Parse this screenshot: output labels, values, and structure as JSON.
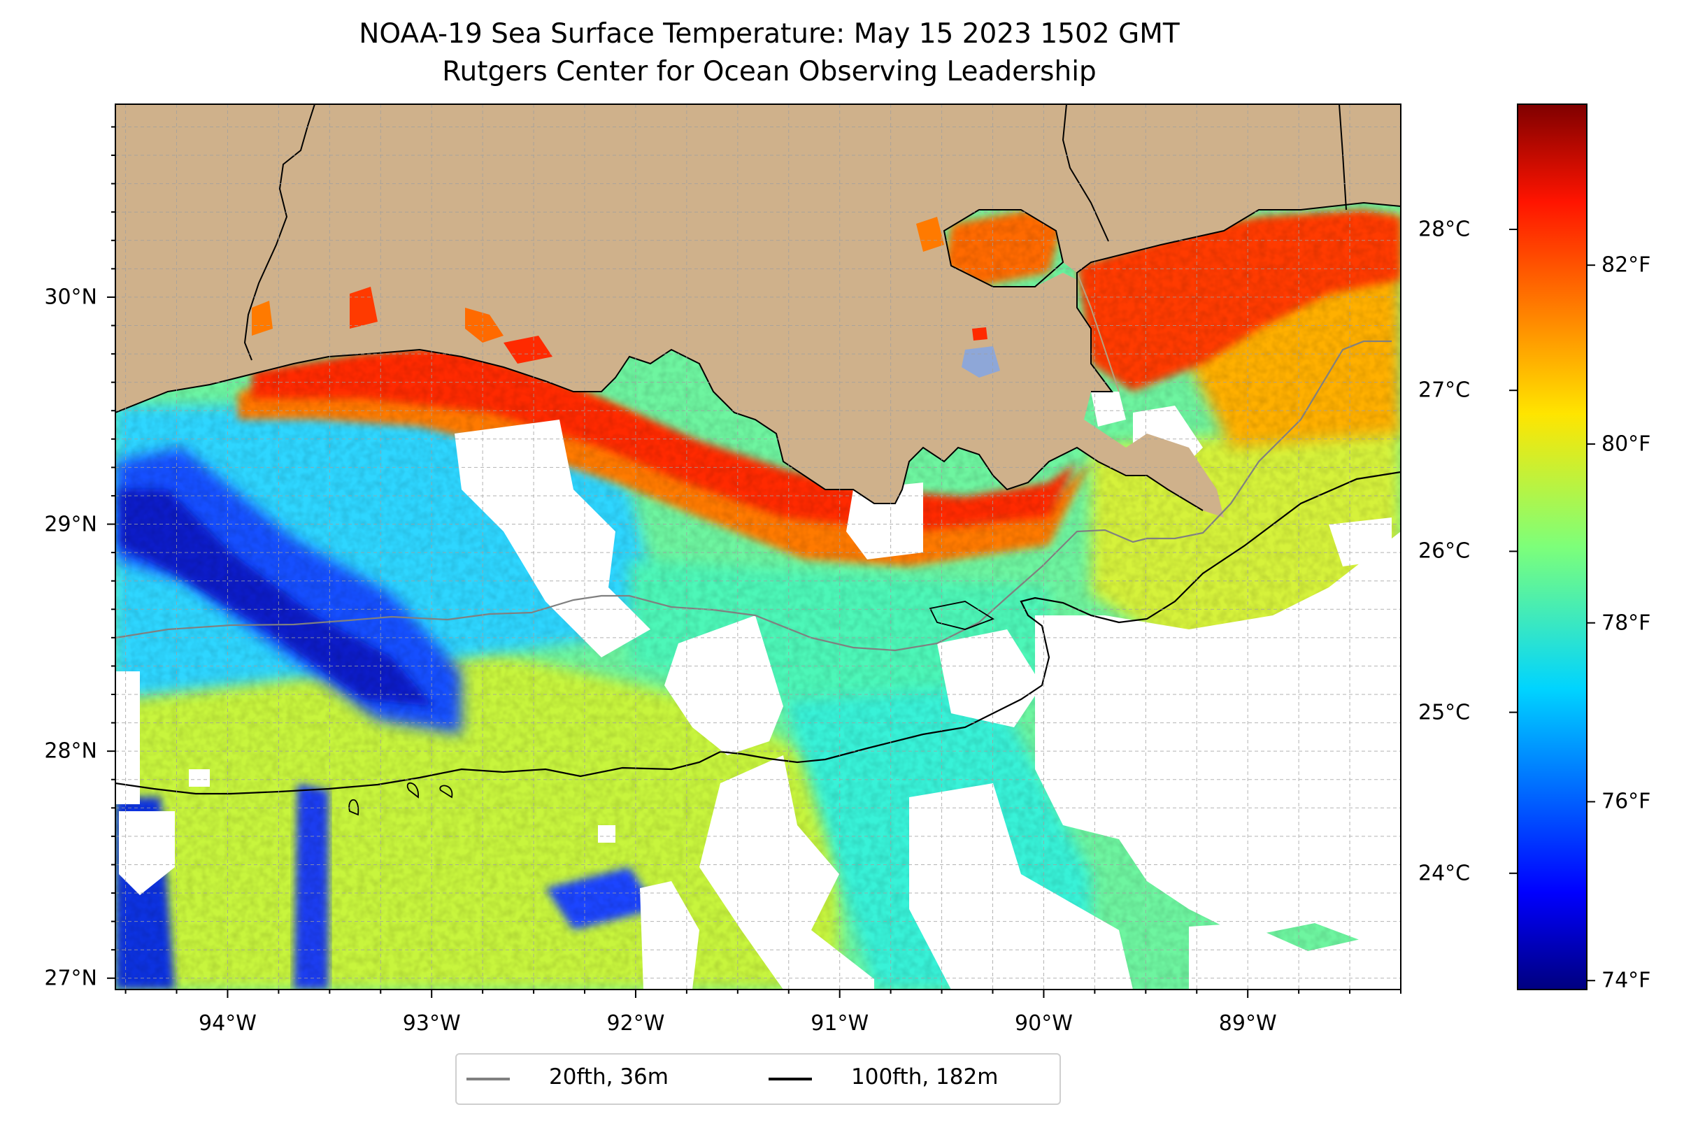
{
  "title": {
    "line1": "NOAA-19 Sea Surface Temperature: May 15 2023 1502 GMT",
    "line2": "Rutgers Center for Ocean Observing Leadership"
  },
  "map": {
    "lon_ticks": [
      {
        "label": "94°W",
        "value": -94
      },
      {
        "label": "93°W",
        "value": -93
      },
      {
        "label": "92°W",
        "value": -92
      },
      {
        "label": "91°W",
        "value": -91
      },
      {
        "label": "90°W",
        "value": -90
      },
      {
        "label": "89°W",
        "value": -89
      }
    ],
    "lat_ticks": [
      {
        "label": "30°N",
        "value": 30
      },
      {
        "label": "29°N",
        "value": 29
      },
      {
        "label": "28°N",
        "value": 28
      },
      {
        "label": "27°N",
        "value": 27
      }
    ],
    "lon_range": [
      -94.55,
      -88.25
    ],
    "lat_range": [
      26.95,
      30.85
    ],
    "grid": true,
    "land_color": "#cfb18b"
  },
  "colorbar": {
    "colormap": "jet",
    "celsius_ticks": [
      {
        "label": "24°C",
        "value": 24
      },
      {
        "label": "25°C",
        "value": 25
      },
      {
        "label": "26°C",
        "value": 26
      },
      {
        "label": "27°C",
        "value": 27
      },
      {
        "label": "28°C",
        "value": 28
      }
    ],
    "fahrenheit_ticks": [
      {
        "label": "74°F",
        "value": 74
      },
      {
        "label": "76°F",
        "value": 76
      },
      {
        "label": "78°F",
        "value": 78
      },
      {
        "label": "80°F",
        "value": 80
      },
      {
        "label": "82°F",
        "value": 82
      }
    ],
    "range_f": [
      73.9,
      83.8
    ]
  },
  "legend": {
    "placement": "bottom-center",
    "items": [
      {
        "label": "20fth, 36m",
        "color": "#808080"
      },
      {
        "label": "100fth, 182m",
        "color": "#000000"
      }
    ]
  }
}
